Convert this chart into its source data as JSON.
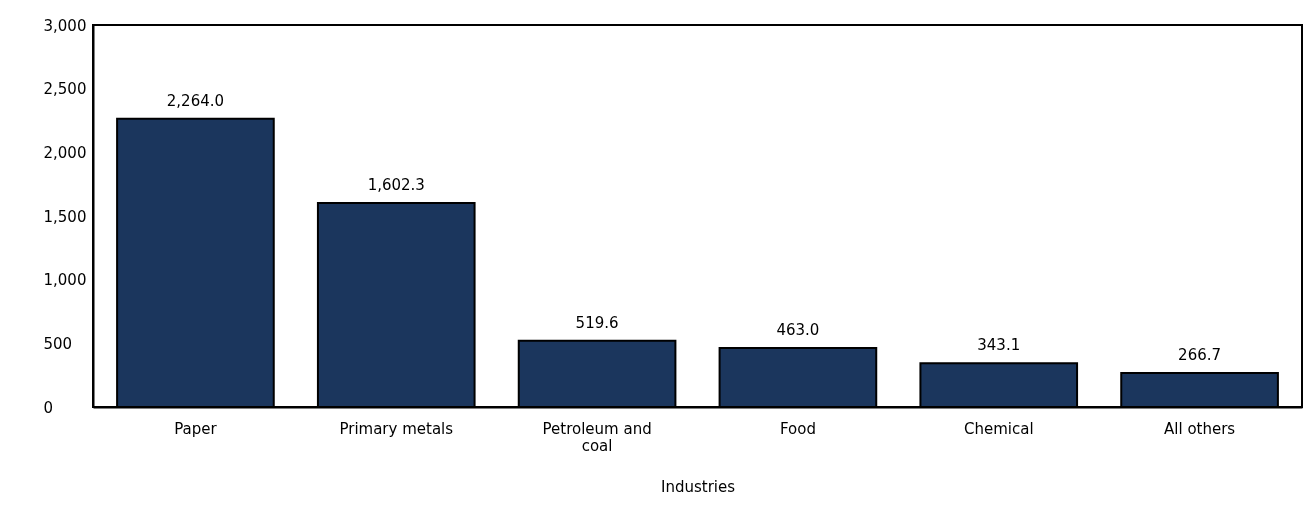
{
  "chart_data": {
    "type": "bar",
    "xlabel": "Industries",
    "categories": [
      "Paper",
      "Primary metals",
      "Petroleum and coal",
      "Food",
      "Chemical",
      "All others"
    ],
    "values": [
      2264.0,
      1602.3,
      519.6,
      463.0,
      343.1,
      266.7
    ],
    "value_labels": [
      "2,264.0",
      "1,602.3",
      "519.6",
      "463.0",
      "343.1",
      "266.7"
    ],
    "color": "#1b365d",
    "ylim": [
      0,
      3000
    ],
    "yticks": [
      0,
      500,
      {
        "value": 1000,
        "label": "1,000"
      },
      {
        "value": 1500,
        "label": "1,500"
      },
      {
        "value": 2000,
        "label": "2,000"
      },
      {
        "value": 2500,
        "label": "2,500"
      },
      {
        "value": 3000,
        "label": "3,000"
      }
    ],
    "grid": false
  }
}
